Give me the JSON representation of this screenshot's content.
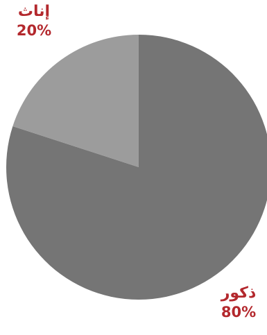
{
  "chart_data": {
    "type": "pie",
    "title": "",
    "start_angle_deg": 0,
    "direction": "clockwise",
    "slices": [
      {
        "label": "ذكور",
        "value": 80,
        "value_label": "80%",
        "color": "#757575"
      },
      {
        "label": "إناث",
        "value": 20,
        "value_label": "20%",
        "color": "#9c9c9c"
      }
    ],
    "legend": "none"
  },
  "colors": {
    "label_text": "#b3282d",
    "background": "#ffffff"
  }
}
